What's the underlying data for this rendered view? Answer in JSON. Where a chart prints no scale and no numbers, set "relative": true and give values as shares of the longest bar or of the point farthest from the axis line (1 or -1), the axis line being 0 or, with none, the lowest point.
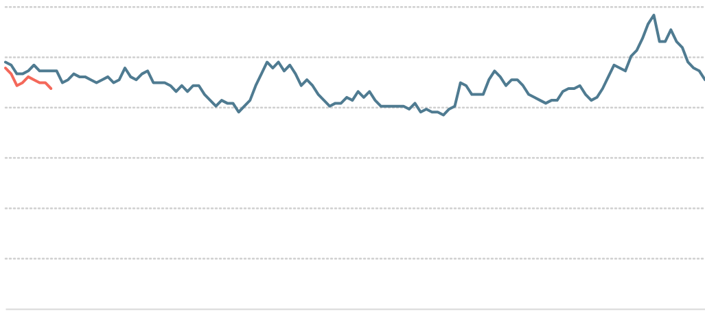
{
  "chart_data": {
    "type": "line",
    "relative": true,
    "grid": "y",
    "categories": [
      null,
      null,
      null,
      null,
      null,
      null,
      null,
      null,
      null,
      null,
      null,
      null,
      null,
      null,
      null,
      null,
      null,
      null,
      null,
      null,
      null,
      null,
      null,
      null,
      null,
      null,
      null,
      null,
      null,
      null,
      null,
      null,
      null,
      null,
      null,
      null,
      null,
      null,
      null,
      null,
      null,
      null,
      null,
      null,
      null,
      null,
      null,
      null,
      null,
      null,
      null,
      null,
      null,
      null,
      null,
      null,
      null,
      null,
      null,
      null,
      null,
      null,
      null,
      null,
      null,
      null,
      null,
      null,
      null,
      null,
      null,
      null,
      null,
      null,
      null,
      null,
      null,
      null,
      null,
      null,
      null,
      null,
      null,
      null,
      null,
      null,
      null,
      null,
      null,
      null,
      null,
      null,
      null,
      null,
      null,
      null,
      null,
      null,
      null,
      null,
      null,
      null,
      null,
      null,
      null,
      null,
      null,
      null,
      null,
      null,
      null,
      null,
      null,
      null,
      null,
      null,
      null,
      null,
      null,
      null,
      null,
      null,
      null,
      null
    ],
    "series": [
      {
        "color": "#4f7b91",
        "values": [
          0.84,
          0.83,
          0.8,
          0.8,
          0.81,
          0.83,
          0.81,
          0.81,
          0.81,
          0.81,
          0.77,
          0.78,
          0.8,
          0.79,
          0.79,
          0.78,
          0.77,
          0.78,
          0.79,
          0.77,
          0.78,
          0.82,
          0.79,
          0.78,
          0.8,
          0.81,
          0.77,
          0.77,
          0.77,
          0.76,
          0.74,
          0.76,
          0.74,
          0.76,
          0.76,
          0.73,
          0.71,
          0.69,
          0.71,
          0.7,
          0.7,
          0.67,
          0.69,
          0.71,
          0.76,
          0.8,
          0.84,
          0.82,
          0.84,
          0.81,
          0.83,
          0.8,
          0.76,
          0.78,
          0.76,
          0.73,
          0.71,
          0.69,
          0.7,
          0.7,
          0.72,
          0.71,
          0.74,
          0.72,
          0.74,
          0.71,
          0.69,
          0.69,
          0.69,
          0.69,
          0.69,
          0.68,
          0.7,
          0.67,
          0.68,
          0.67,
          0.67,
          0.66,
          0.68,
          0.69,
          0.77,
          0.76,
          0.73,
          0.73,
          0.73,
          0.78,
          0.81,
          0.79,
          0.76,
          0.78,
          0.78,
          0.76,
          0.73,
          0.72,
          0.71,
          0.7,
          0.71,
          0.71,
          0.74,
          0.75,
          0.75,
          0.76,
          0.73,
          0.71,
          0.72,
          0.75,
          0.79,
          0.83,
          0.82,
          0.81,
          0.86,
          0.88,
          0.92,
          0.97,
          1,
          0.91,
          0.91,
          0.95,
          0.91,
          0.89,
          0.84,
          0.82,
          0.81,
          0.78
        ]
      },
      {
        "color": "#f4685a",
        "values": [
          0.82,
          0.8,
          0.76,
          0.77,
          0.79,
          0.78,
          0.77,
          0.77,
          0.75,
          null,
          null,
          null,
          null,
          null,
          null,
          null,
          null,
          null,
          null,
          null,
          null,
          null,
          null,
          null,
          null,
          null,
          null,
          null,
          null,
          null,
          null,
          null,
          null,
          null,
          null,
          null,
          null,
          null,
          null,
          null,
          null,
          null,
          null,
          null,
          null,
          null,
          null,
          null,
          null,
          null,
          null,
          null,
          null,
          null,
          null,
          null,
          null,
          null,
          null,
          null,
          null,
          null,
          null,
          null,
          null,
          null,
          null,
          null,
          null,
          null,
          null,
          null,
          null,
          null,
          null,
          null,
          null,
          null,
          null,
          null,
          null,
          null,
          null,
          null,
          null,
          null,
          null,
          null,
          null,
          null,
          null,
          null,
          null,
          null,
          null,
          null,
          null,
          null,
          null,
          null,
          null,
          null,
          null,
          null,
          null,
          null,
          null,
          null,
          null,
          null,
          null,
          null,
          null,
          null,
          null,
          null,
          null,
          null,
          null,
          null,
          null,
          null,
          null,
          null
        ]
      }
    ]
  }
}
